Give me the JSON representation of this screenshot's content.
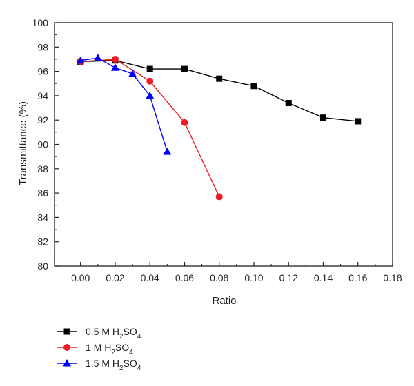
{
  "chart_data": {
    "type": "line",
    "title": "",
    "xlabel": "Ratio",
    "ylabel": "Transmittance (%)",
    "xlim": [
      -0.015,
      0.18
    ],
    "ylim": [
      80,
      100
    ],
    "xticks": [
      0.0,
      0.02,
      0.04,
      0.06,
      0.08,
      0.1,
      0.12,
      0.14,
      0.16,
      0.18
    ],
    "xtick_labels": [
      "0.00",
      "0.02",
      "0.04",
      "0.06",
      "0.08",
      "0.10",
      "0.12",
      "0.14",
      "0.16",
      "0.18"
    ],
    "yticks": [
      80,
      82,
      84,
      86,
      88,
      90,
      92,
      94,
      96,
      98,
      100
    ],
    "ytick_labels": [
      "80",
      "82",
      "84",
      "86",
      "88",
      "90",
      "92",
      "94",
      "96",
      "98",
      "100"
    ],
    "grid": false,
    "legend_position": "bottom-left",
    "series": [
      {
        "name_prefix": "0.5 M H",
        "name_sub1": "2",
        "name_mid": "SO",
        "name_sub2": "4",
        "color": "#000000",
        "marker": "square",
        "x": [
          0.0,
          0.02,
          0.04,
          0.06,
          0.08,
          0.1,
          0.12,
          0.14,
          0.16
        ],
        "y": [
          96.8,
          96.9,
          96.2,
          96.2,
          95.4,
          94.8,
          93.4,
          92.2,
          91.9
        ]
      },
      {
        "name_prefix": "1 M H",
        "name_sub1": "2",
        "name_mid": "SO",
        "name_sub2": "4",
        "color": "#ed1c24",
        "marker": "circle",
        "x": [
          0.0,
          0.02,
          0.04,
          0.06,
          0.08
        ],
        "y": [
          96.8,
          97.0,
          95.2,
          91.8,
          85.7
        ]
      },
      {
        "name_prefix": "1.5 M H",
        "name_sub1": "2",
        "name_mid": "SO",
        "name_sub2": "4",
        "color": "#0000ff",
        "marker": "triangle",
        "x": [
          0.0,
          0.01,
          0.02,
          0.03,
          0.04,
          0.05
        ],
        "y": [
          96.9,
          97.1,
          96.3,
          95.8,
          94.0,
          89.4
        ]
      }
    ]
  }
}
